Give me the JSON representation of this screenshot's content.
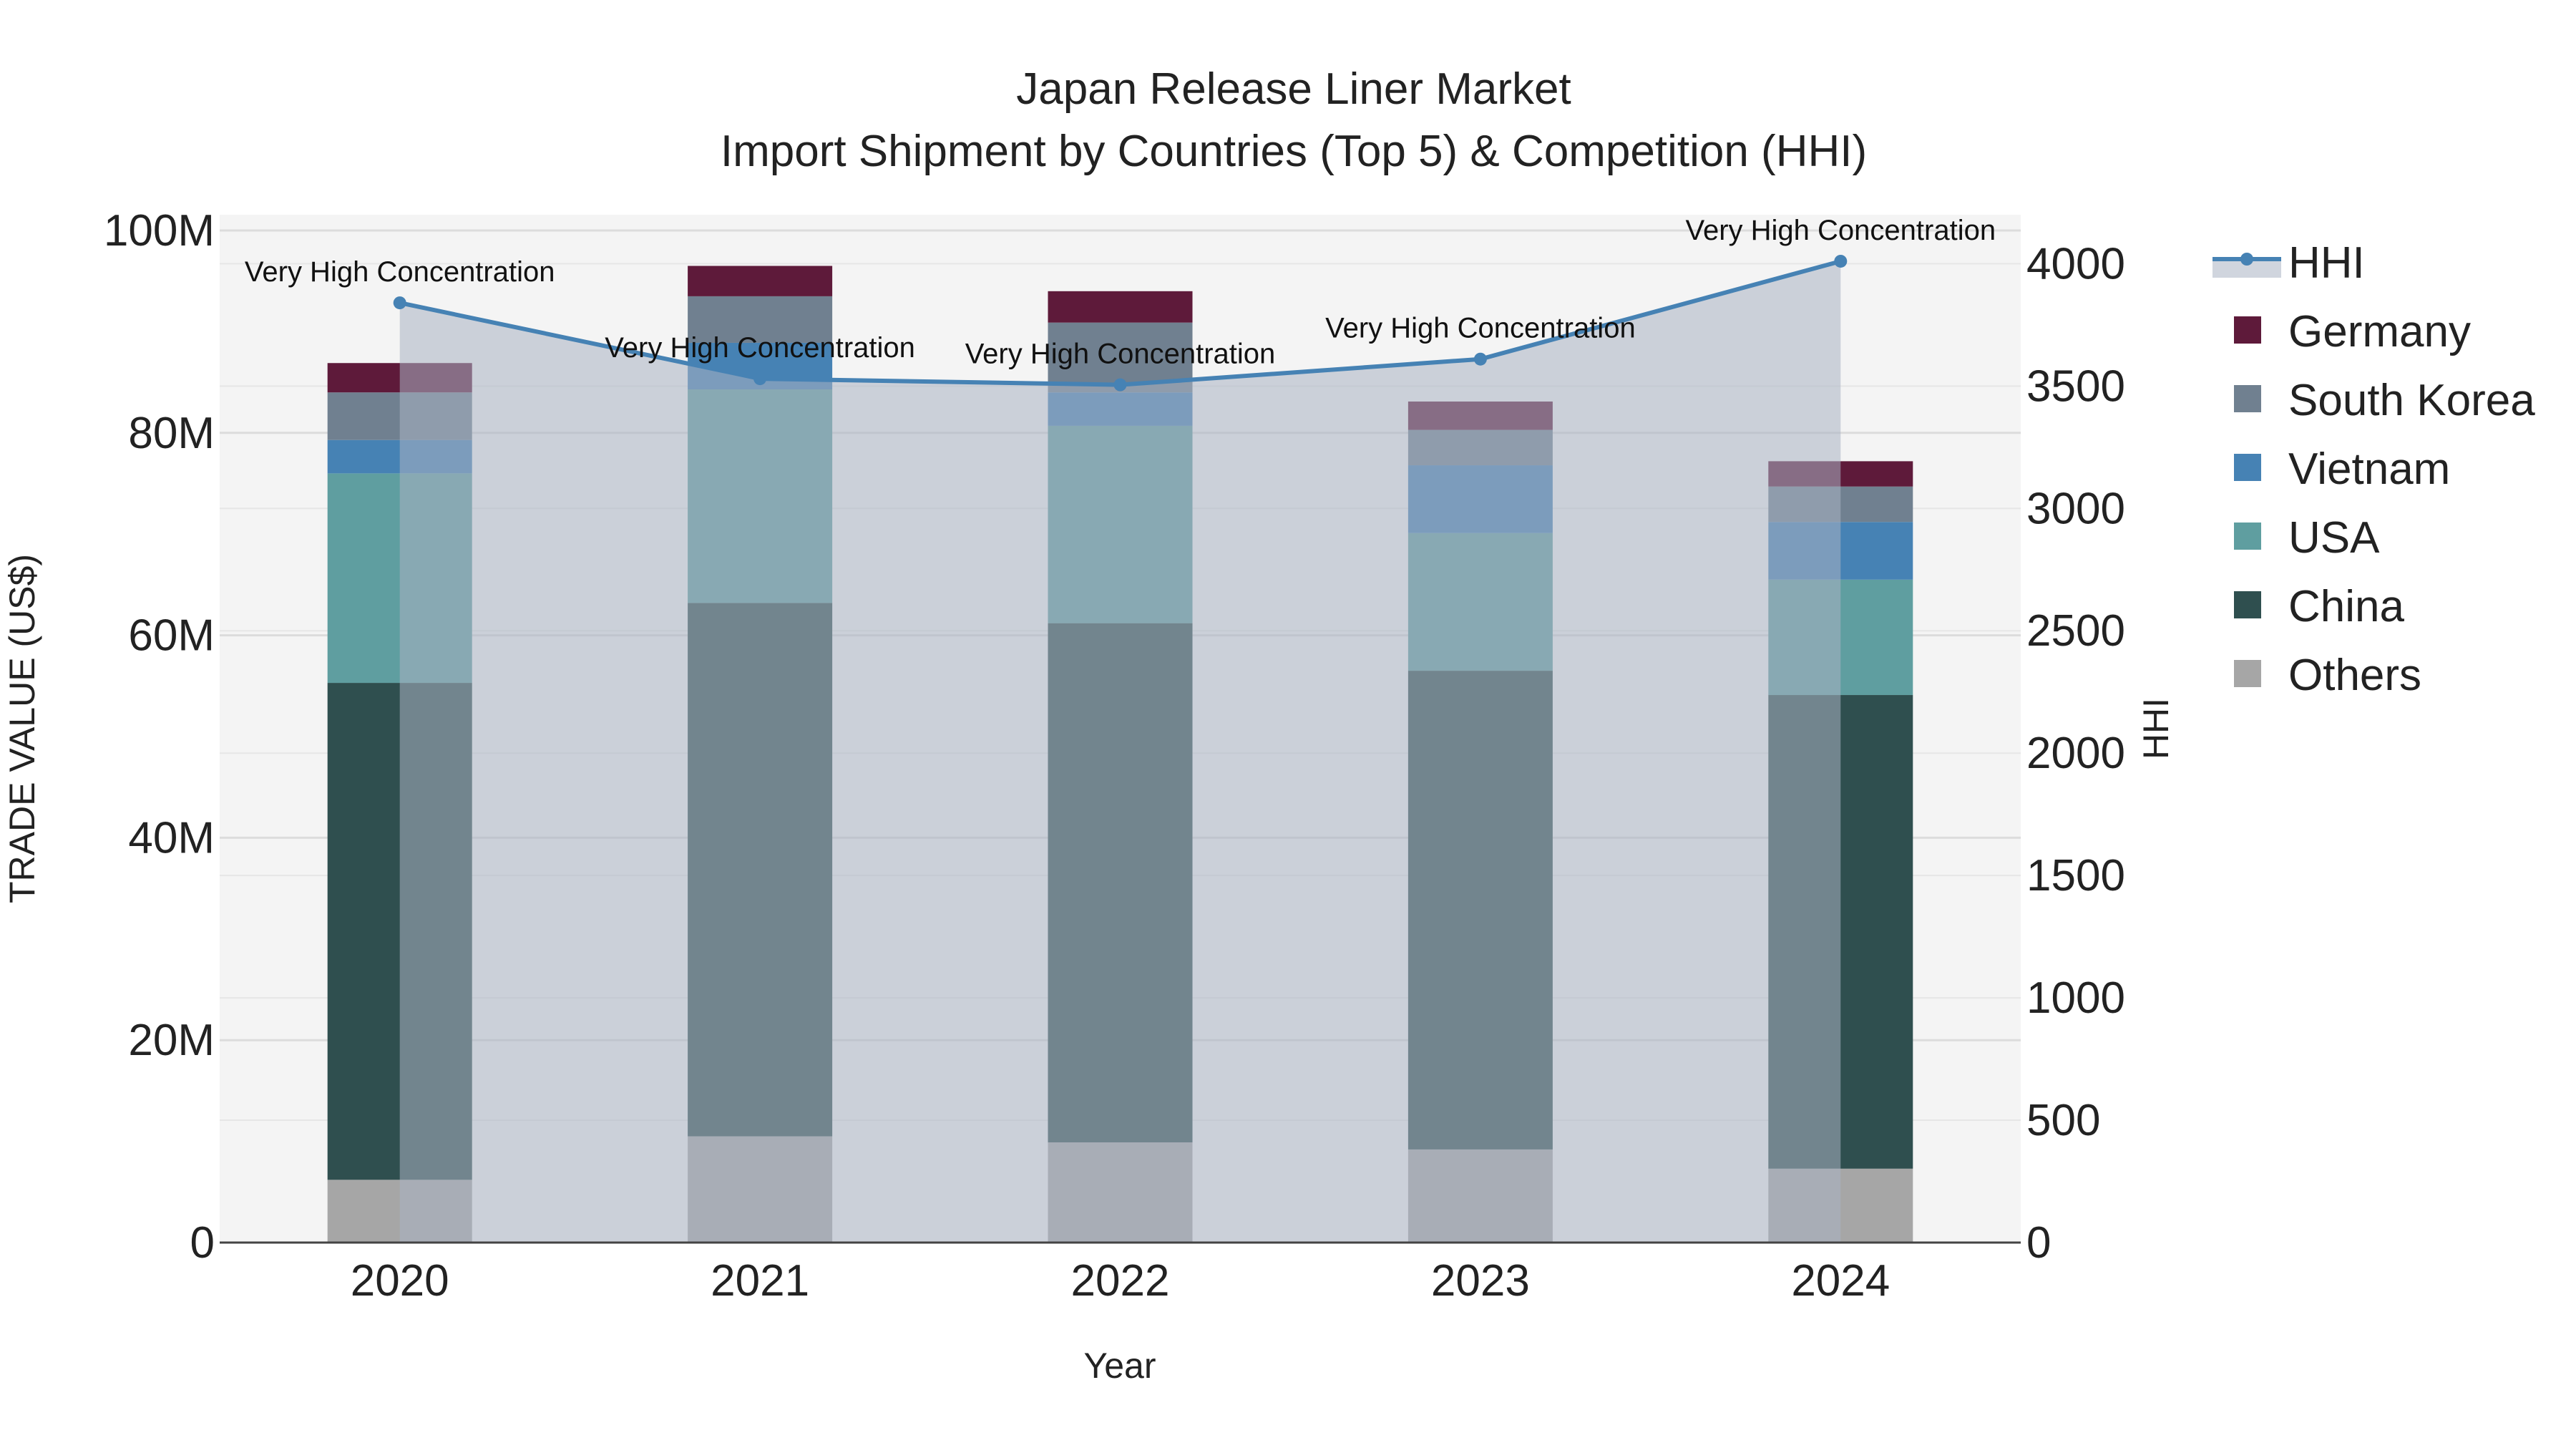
{
  "chart_data": {
    "type": "bar",
    "title_line1": "Japan Release Liner Market",
    "title_line2": "Import Shipment by Countries (Top 5) & Competition (HHI)",
    "xlabel": "Year",
    "ylabel": "TRADE VALUE (US$)",
    "y2label": "HHI",
    "categories": [
      "2020",
      "2021",
      "2022",
      "2023",
      "2024"
    ],
    "ylim": [
      0,
      100000000
    ],
    "y2lim": [
      0,
      4000
    ],
    "y_ticks": [
      0,
      20000000,
      40000000,
      60000000,
      80000000,
      100000000
    ],
    "y_tick_labels": [
      "0",
      "20M",
      "40M",
      "60M",
      "80M",
      "100M"
    ],
    "y2_ticks": [
      0,
      500,
      1000,
      1500,
      2000,
      2500,
      3000,
      3500,
      4000
    ],
    "y2_tick_labels": [
      "0",
      "500",
      "1000",
      "1500",
      "2000",
      "2500",
      "3000",
      "3500",
      "4000"
    ],
    "series": [
      {
        "name": "Others",
        "color": "#a6a6a6",
        "values": [
          6200000,
          10500000,
          9900000,
          9200000,
          7300000
        ]
      },
      {
        "name": "China",
        "color": "#2f4f4f",
        "values": [
          49100000,
          52700000,
          51300000,
          47300000,
          46800000
        ]
      },
      {
        "name": "USA",
        "color": "#5f9ea0",
        "values": [
          20700000,
          21100000,
          19500000,
          13600000,
          11400000
        ]
      },
      {
        "name": "Vietnam",
        "color": "#4682b4",
        "values": [
          3300000,
          4600000,
          3300000,
          6700000,
          5700000
        ]
      },
      {
        "name": "South Korea",
        "color": "#708090",
        "values": [
          4700000,
          4600000,
          6900000,
          3500000,
          3500000
        ]
      },
      {
        "name": "Germany",
        "color": "#5e1a3a",
        "values": [
          2900000,
          3000000,
          3100000,
          2800000,
          2500000
        ]
      }
    ],
    "hhi": {
      "name": "HHI",
      "color": "#4682b4",
      "values": [
        3840,
        3530,
        3505,
        3610,
        4010
      ],
      "annotations": [
        "Very High Concentration",
        "Very High Concentration",
        "Very High Concentration",
        "Very High Concentration",
        "Very High Concentration"
      ]
    },
    "legend_order": [
      "HHI",
      "Germany",
      "South Korea",
      "Vietnam",
      "USA",
      "China",
      "Others"
    ],
    "legend_position": "right"
  }
}
